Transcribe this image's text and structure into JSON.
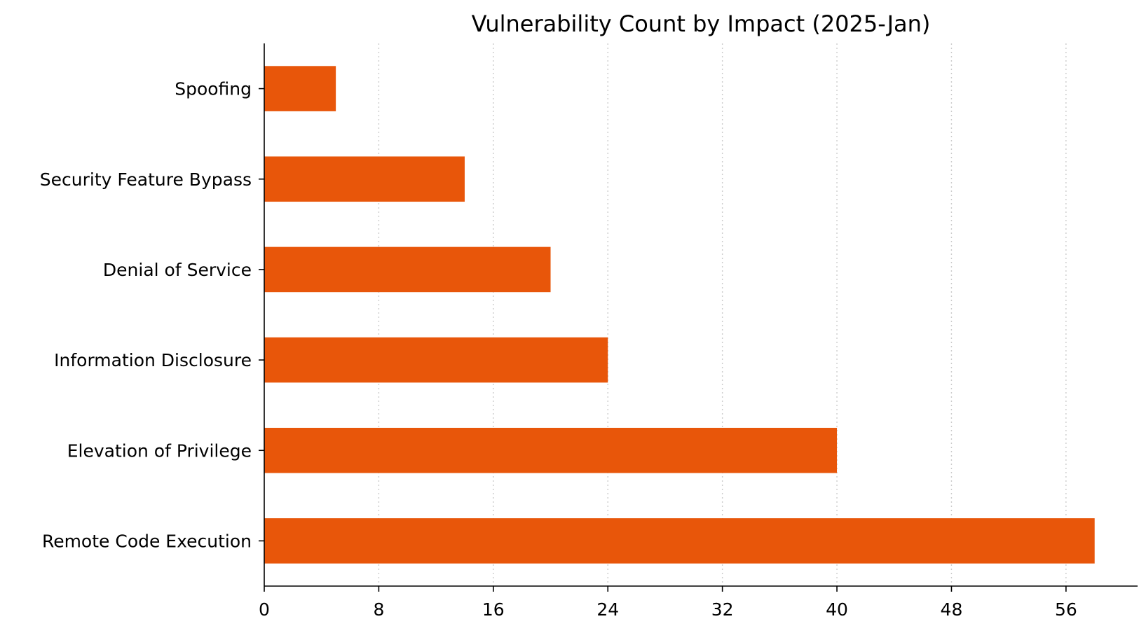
{
  "chart_data": {
    "type": "bar",
    "orientation": "horizontal",
    "title": "Vulnerability Count by Impact (2025-Jan)",
    "xlabel": "",
    "ylabel": "",
    "categories": [
      "Spoofing",
      "Security Feature Bypass",
      "Denial of Service",
      "Information Disclosure",
      "Elevation of Privilege",
      "Remote Code Execution"
    ],
    "values": [
      5,
      14,
      20,
      24,
      40,
      58
    ],
    "xlim": [
      0,
      61
    ],
    "xticks": [
      0,
      8,
      16,
      24,
      32,
      40,
      48,
      56
    ],
    "xtick_labels": [
      "0",
      "8",
      "16",
      "24",
      "32",
      "40",
      "48",
      "56"
    ],
    "grid": "x-axis dotted",
    "legend": "none"
  },
  "colors": {
    "bar": "#E8560A",
    "axis": "#000000",
    "grid": "#cccccc"
  }
}
